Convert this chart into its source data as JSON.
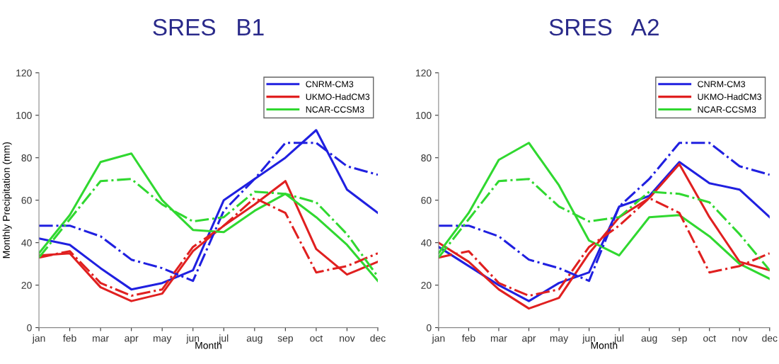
{
  "chart_data": [
    {
      "type": "line",
      "title": "SRES   B1",
      "xlabel": "Month",
      "ylabel": "Monthly Precipitation (mm)",
      "categories": [
        "jan",
        "feb",
        "mar",
        "apr",
        "may",
        "jun",
        "jul",
        "aug",
        "sep",
        "oct",
        "nov",
        "dec"
      ],
      "ylim": [
        0,
        120
      ],
      "yticks": [
        0,
        20,
        40,
        60,
        80,
        100,
        120
      ],
      "grid": false,
      "legend": "top right",
      "marker": "none",
      "series": [
        {
          "name": "CNRM-CM3",
          "color": "#2020e0",
          "line_style": "solid",
          "values": [
            42,
            39,
            28,
            18,
            21,
            27,
            60,
            70,
            80,
            93,
            65,
            54
          ]
        },
        {
          "name": "UKMO-HadCM3",
          "color": "#e02020",
          "line_style": "solid",
          "values": [
            34,
            35,
            19,
            12.5,
            16,
            36,
            48,
            58,
            69,
            37,
            25,
            31
          ]
        },
        {
          "name": "NCAR-CCSM3",
          "color": "#30d830",
          "line_style": "solid",
          "values": [
            35,
            53,
            78,
            82,
            60,
            46,
            45,
            55,
            63,
            52,
            39,
            22
          ]
        },
        {
          "color": "#2020e0",
          "line_style": "dashdot",
          "values": [
            48,
            48,
            43,
            32,
            28,
            22,
            55,
            70,
            87,
            87,
            76,
            72
          ]
        },
        {
          "color": "#e02020",
          "line_style": "dashdot",
          "values": [
            33,
            36,
            21,
            15,
            18,
            38,
            48,
            61,
            54,
            26,
            29,
            35
          ]
        },
        {
          "color": "#30d830",
          "line_style": "dashdot",
          "values": [
            33,
            51,
            69,
            70,
            58,
            50,
            52,
            64,
            63,
            59,
            44,
            24
          ]
        }
      ]
    },
    {
      "type": "line",
      "title": "SRES   A2",
      "xlabel": "Month",
      "categories": [
        "jan",
        "feb",
        "mar",
        "apr",
        "may",
        "jun",
        "jul",
        "aug",
        "sep",
        "oct",
        "nov",
        "dec"
      ],
      "ylim": [
        0,
        120
      ],
      "yticks": [
        0,
        20,
        40,
        60,
        80,
        100,
        120
      ],
      "grid": false,
      "legend": "top right",
      "marker": "none",
      "series": [
        {
          "name": "CNRM-CM3",
          "color": "#2020e0",
          "line_style": "solid",
          "values": [
            38,
            29,
            20,
            12.5,
            21,
            26,
            57,
            62,
            78,
            68,
            65,
            52
          ]
        },
        {
          "name": "UKMO-HadCM3",
          "color": "#e02020",
          "line_style": "solid",
          "values": [
            40,
            31,
            18,
            9,
            14,
            35,
            52,
            61,
            77,
            52,
            31,
            27
          ]
        },
        {
          "name": "NCAR-CCSM3",
          "color": "#30d830",
          "line_style": "solid",
          "values": [
            35,
            54,
            79,
            87,
            67,
            41,
            34,
            52,
            53,
            43,
            30,
            23
          ]
        },
        {
          "color": "#2020e0",
          "line_style": "dashdot",
          "values": [
            48,
            48,
            43,
            32,
            28,
            22,
            57,
            70,
            87,
            87,
            76,
            72
          ]
        },
        {
          "color": "#e02020",
          "line_style": "dashdot",
          "values": [
            33,
            36,
            21,
            15,
            18,
            38,
            48,
            61,
            54,
            26,
            29,
            35
          ]
        },
        {
          "color": "#30d830",
          "line_style": "dashdot",
          "values": [
            33,
            51,
            69,
            70,
            57,
            50,
            52,
            64,
            63,
            59,
            44,
            27
          ]
        }
      ]
    }
  ]
}
